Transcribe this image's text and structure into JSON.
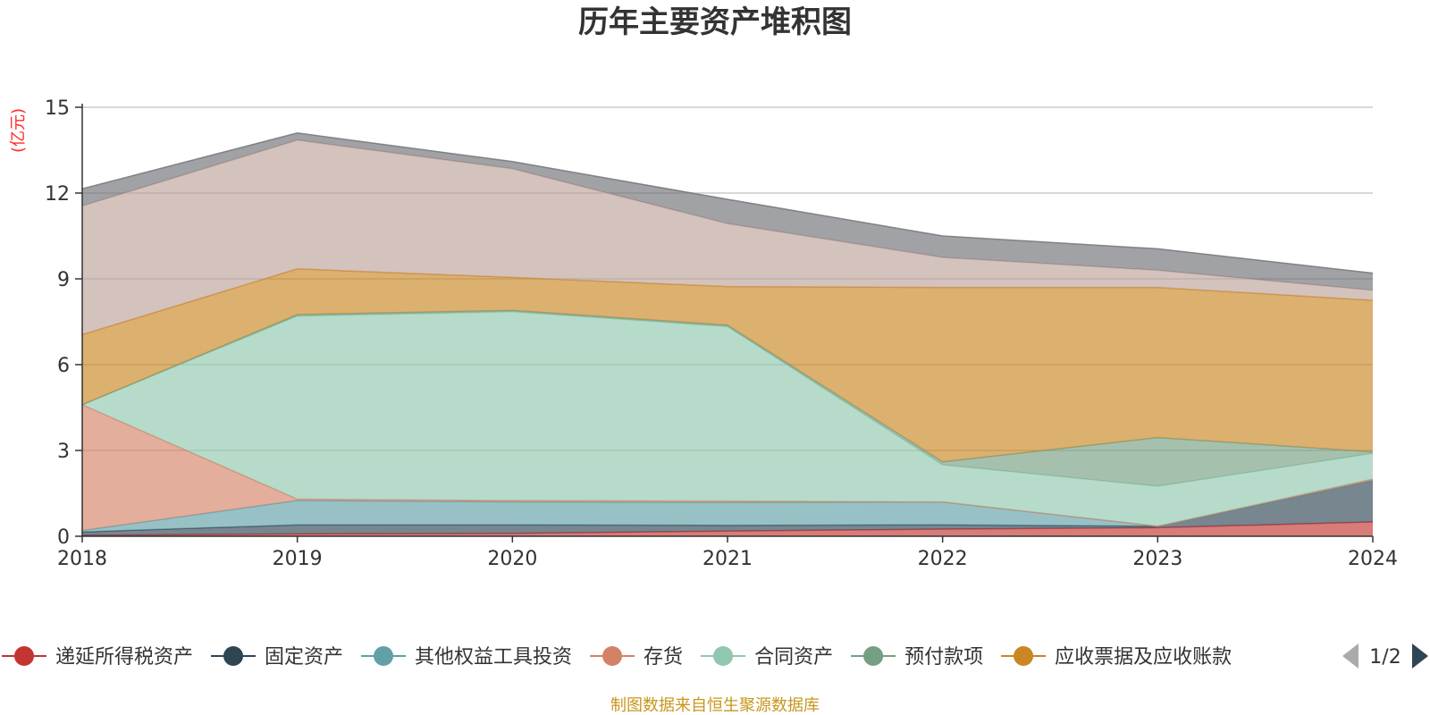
{
  "chart_data": {
    "type": "area",
    "title": "历年主要资产堆积图",
    "unit_label": "(亿元)",
    "x": [
      "2018",
      "2019",
      "2020",
      "2021",
      "2022",
      "2023",
      "2024"
    ],
    "ylim": [
      0,
      15
    ],
    "yticks": [
      0,
      3,
      6,
      9,
      12,
      15
    ],
    "grid": true,
    "stacked": true,
    "series": [
      {
        "name": "递延所得税资产",
        "color": "#c23531",
        "values": [
          0.03,
          0.08,
          0.1,
          0.18,
          0.25,
          0.3,
          0.5
        ]
      },
      {
        "name": "固定资产",
        "color": "#2f4554",
        "values": [
          0.12,
          0.32,
          0.3,
          0.2,
          0.15,
          0.05,
          1.45
        ]
      },
      {
        "name": "其他权益工具投资",
        "color": "#61a0a8",
        "values": [
          0.05,
          0.85,
          0.8,
          0.8,
          0.8,
          0.0,
          0.0
        ]
      },
      {
        "name": "存货",
        "color": "#d48265",
        "values": [
          4.4,
          0.05,
          0.05,
          0.05,
          0.0,
          0.0,
          0.05
        ]
      },
      {
        "name": "合同资产",
        "color": "#91c7ae",
        "values": [
          0.0,
          6.4,
          6.6,
          6.1,
          1.3,
          1.4,
          0.9
        ]
      },
      {
        "name": "预付款项",
        "color": "#749f83",
        "values": [
          0.0,
          0.05,
          0.05,
          0.05,
          0.1,
          1.7,
          0.05
        ]
      },
      {
        "name": "应收票据及应收账款",
        "color": "#ca8622",
        "values": [
          2.45,
          1.6,
          1.15,
          1.35,
          6.1,
          5.25,
          5.3
        ]
      },
      {
        "color": "#bda29a",
        "values": [
          4.5,
          4.5,
          3.8,
          2.2,
          1.05,
          0.6,
          0.35
        ]
      },
      {
        "color": "#6e7074",
        "values": [
          0.6,
          0.25,
          0.25,
          0.85,
          0.75,
          0.75,
          0.6
        ]
      }
    ],
    "legend": {
      "items": [
        "递延所得税资产",
        "固定资产",
        "其他权益工具投资",
        "存货",
        "合同资产",
        "预付款项",
        "应收票据及应收账款"
      ],
      "page": "1/2",
      "placement": "bottom"
    },
    "source_note": "制图数据来自恒生聚源数据库"
  }
}
